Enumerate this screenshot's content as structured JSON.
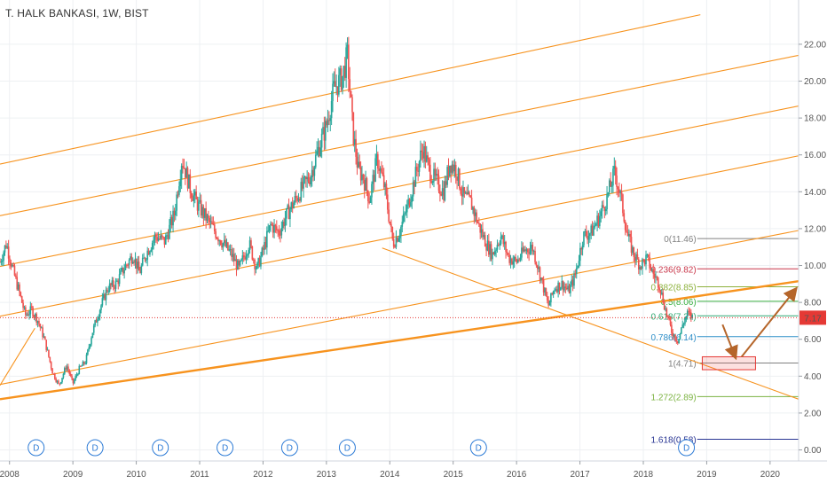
{
  "title": "T. HALK BANKASI, 1W, BIST",
  "price_label": "7.17",
  "chart_data": {
    "type": "candlestick",
    "symbol": "T. HALK BANKASI",
    "interval": "1W",
    "exchange": "BIST",
    "xlim": [
      2007.85,
      2020.45
    ],
    "ylim": [
      -0.6,
      24.4
    ],
    "y_ticks": [
      0,
      2,
      4,
      6,
      8,
      10,
      12,
      14,
      16,
      18,
      20,
      22
    ],
    "y_tick_labels": [
      "0.00",
      "2.00",
      "4.00",
      "6.00",
      "8.00",
      "10.00",
      "12.00",
      "14.00",
      "16.00",
      "18.00",
      "20.00",
      "22.00"
    ],
    "x_ticks": [
      2008,
      2009,
      2010,
      2011,
      2012,
      2013,
      2014,
      2015,
      2016,
      2017,
      2018,
      2019,
      2020
    ],
    "x_tick_labels": [
      "2008",
      "2009",
      "2010",
      "2011",
      "2012",
      "2013",
      "2014",
      "2015",
      "2016",
      "2017",
      "2018",
      "2019",
      "2020"
    ],
    "current_price": 7.17,
    "price_path": [
      [
        2007.85,
        10.2
      ],
      [
        2007.95,
        11.2
      ],
      [
        2008.05,
        9.8
      ],
      [
        2008.15,
        8.6
      ],
      [
        2008.25,
        7.3
      ],
      [
        2008.35,
        7.6
      ],
      [
        2008.45,
        7.0
      ],
      [
        2008.55,
        6.0
      ],
      [
        2008.68,
        4.2
      ],
      [
        2008.78,
        3.5
      ],
      [
        2008.9,
        4.6
      ],
      [
        2009.0,
        3.6
      ],
      [
        2009.1,
        4.4
      ],
      [
        2009.2,
        4.8
      ],
      [
        2009.3,
        6.3
      ],
      [
        2009.42,
        7.6
      ],
      [
        2009.55,
        8.8
      ],
      [
        2009.68,
        9.0
      ],
      [
        2009.8,
        9.8
      ],
      [
        2009.95,
        10.6
      ],
      [
        2010.05,
        9.6
      ],
      [
        2010.15,
        10.6
      ],
      [
        2010.3,
        11.6
      ],
      [
        2010.45,
        11.3
      ],
      [
        2010.6,
        12.8
      ],
      [
        2010.72,
        15.8
      ],
      [
        2010.85,
        14.2
      ],
      [
        2010.95,
        13.4
      ],
      [
        2011.1,
        12.6
      ],
      [
        2011.25,
        11.8
      ],
      [
        2011.35,
        11.3
      ],
      [
        2011.5,
        10.6
      ],
      [
        2011.62,
        9.8
      ],
      [
        2011.78,
        11.2
      ],
      [
        2011.9,
        9.8
      ],
      [
        2012.0,
        10.8
      ],
      [
        2012.12,
        12.2
      ],
      [
        2012.25,
        11.8
      ],
      [
        2012.38,
        12.8
      ],
      [
        2012.5,
        13.5
      ],
      [
        2012.62,
        14.2
      ],
      [
        2012.75,
        14.9
      ],
      [
        2012.88,
        16.4
      ],
      [
        2013.0,
        17.6
      ],
      [
        2013.12,
        19.6
      ],
      [
        2013.25,
        20.2
      ],
      [
        2013.33,
        21.4
      ],
      [
        2013.42,
        17.2
      ],
      [
        2013.5,
        15.2
      ],
      [
        2013.58,
        14.8
      ],
      [
        2013.68,
        13.6
      ],
      [
        2013.8,
        15.8
      ],
      [
        2013.92,
        14.2
      ],
      [
        2014.05,
        11.2
      ],
      [
        2014.15,
        11.8
      ],
      [
        2014.28,
        13.2
      ],
      [
        2014.4,
        14.8
      ],
      [
        2014.52,
        16.4
      ],
      [
        2014.62,
        15.2
      ],
      [
        2014.72,
        14.6
      ],
      [
        2014.85,
        14.0
      ],
      [
        2014.95,
        15.6
      ],
      [
        2015.05,
        15.2
      ],
      [
        2015.15,
        13.8
      ],
      [
        2015.28,
        13.4
      ],
      [
        2015.4,
        12.2
      ],
      [
        2015.52,
        11.2
      ],
      [
        2015.62,
        10.6
      ],
      [
        2015.75,
        11.6
      ],
      [
        2015.88,
        10.4
      ],
      [
        2016.0,
        10.2
      ],
      [
        2016.12,
        10.8
      ],
      [
        2016.25,
        11.0
      ],
      [
        2016.38,
        9.4
      ],
      [
        2016.5,
        7.8
      ],
      [
        2016.6,
        8.8
      ],
      [
        2016.72,
        9.0
      ],
      [
        2016.82,
        8.6
      ],
      [
        2016.92,
        9.4
      ],
      [
        2017.05,
        11.6
      ],
      [
        2017.18,
        11.8
      ],
      [
        2017.3,
        12.6
      ],
      [
        2017.42,
        13.6
      ],
      [
        2017.55,
        15.1
      ],
      [
        2017.65,
        13.6
      ],
      [
        2017.75,
        11.6
      ],
      [
        2017.85,
        10.6
      ],
      [
        2017.95,
        10.0
      ],
      [
        2018.05,
        10.4
      ],
      [
        2018.15,
        9.6
      ],
      [
        2018.25,
        9.0
      ],
      [
        2018.35,
        7.6
      ],
      [
        2018.45,
        6.4
      ],
      [
        2018.55,
        5.9
      ],
      [
        2018.62,
        6.8
      ],
      [
        2018.7,
        7.4
      ],
      [
        2018.78,
        7.17
      ]
    ],
    "channel_lines": [
      {
        "p1": [
          2007.85,
          15.5
        ],
        "p2": [
          2018.9,
          23.6
        ],
        "style": "thin"
      },
      {
        "p1": [
          2007.85,
          12.7
        ],
        "p2": [
          2020.45,
          21.4
        ],
        "style": "thin"
      },
      {
        "p1": [
          2007.85,
          9.95
        ],
        "p2": [
          2020.45,
          18.65
        ],
        "style": "thin"
      },
      {
        "p1": [
          2007.85,
          7.25
        ],
        "p2": [
          2020.45,
          15.95
        ],
        "style": "thin"
      },
      {
        "p1": [
          2007.85,
          3.55
        ],
        "p2": [
          2020.45,
          11.9
        ],
        "style": "thin"
      },
      {
        "p1": [
          2007.85,
          2.75
        ],
        "p2": [
          2020.45,
          9.15
        ],
        "style": "thick"
      },
      {
        "p1": [
          2007.85,
          3.5
        ],
        "p2": [
          2008.4,
          6.6
        ],
        "style": "thin"
      },
      {
        "p1": [
          2013.88,
          10.95
        ],
        "p2": [
          2020.45,
          2.75
        ],
        "style": "thin"
      }
    ],
    "fibonacci": [
      {
        "label": "0(11.46)",
        "value": 11.46,
        "color": "#808080"
      },
      {
        "label": "0.236(9.82)",
        "value": 9.82,
        "color": "#c8374a"
      },
      {
        "label": "0.382(8.85)",
        "value": 8.85,
        "color": "#8db13c"
      },
      {
        "label": "0.5(8.06)",
        "value": 8.06,
        "color": "#3cb043"
      },
      {
        "label": "0.618(7.27)",
        "value": 7.27,
        "color": "#2fa872"
      },
      {
        "label": "0.786(6.14)",
        "value": 6.14,
        "color": "#2f8fc8"
      },
      {
        "label": "1(4.71)",
        "value": 4.71,
        "color": "#808080"
      },
      {
        "label": "1.272(2.89)",
        "value": 2.89,
        "color": "#7cb342"
      },
      {
        "label": "1.618(0.58)",
        "value": 0.58,
        "color": "#283593"
      }
    ],
    "fib_x_start": 2018.85,
    "fib_label_x": 2018.92,
    "target_box": {
      "x1": 2018.93,
      "x2": 2019.77,
      "y1": 4.35,
      "y2": 5.05
    },
    "arrows": [
      {
        "from": [
          2019.25,
          6.8
        ],
        "to": [
          2019.45,
          5.05
        ]
      },
      {
        "from": [
          2019.55,
          5.05
        ],
        "to": [
          2020.4,
          8.7
        ]
      }
    ],
    "dividend_markers": [
      2008.42,
      2009.35,
      2010.38,
      2011.4,
      2012.42,
      2013.33,
      2015.4,
      2018.68
    ],
    "dividend_label": "D",
    "colors": {
      "up": "#26a69a",
      "down": "#ef5350",
      "channel": "#f7931e",
      "price_line": "#e53935",
      "dividend": "#2d7bd6"
    }
  }
}
